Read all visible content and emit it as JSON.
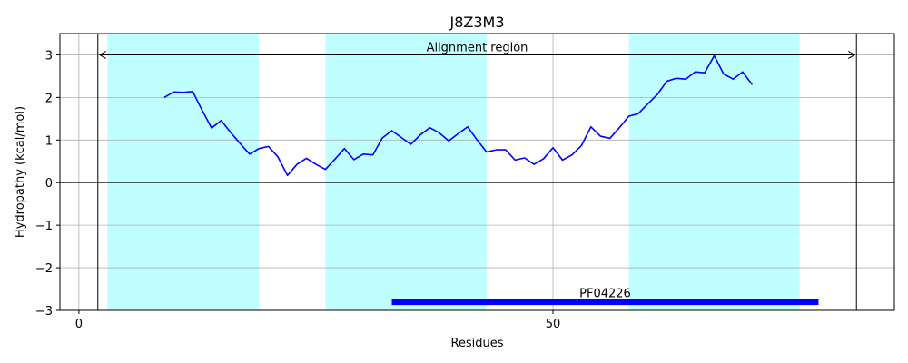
{
  "chart_data": {
    "type": "line",
    "title": "J8Z3M3",
    "xlabel": "Residues",
    "ylabel": "Hydropathy (kcal/mol)",
    "xlim": [
      -2,
      86
    ],
    "ylim": [
      -3,
      3.5
    ],
    "xticks": [
      0,
      50
    ],
    "xtick_labels": [
      "0",
      "50"
    ],
    "yticks": [
      -3,
      -2,
      -1,
      0,
      1,
      2,
      3
    ],
    "ytick_labels": [
      "−3",
      "−2",
      "−1",
      "0",
      "1",
      "2",
      "3"
    ],
    "grid": true,
    "series": [
      {
        "color": "#0000ff",
        "x": [
          9,
          10,
          11,
          12,
          13,
          14,
          15,
          16,
          17,
          18,
          19,
          20,
          21,
          22,
          23,
          24,
          25,
          26,
          27,
          28,
          29,
          30,
          31,
          32,
          33,
          34,
          35,
          36,
          37,
          38,
          39,
          40,
          41,
          42,
          43,
          44,
          45,
          46,
          47,
          48,
          49,
          50,
          51,
          52,
          53,
          54,
          55,
          56,
          57,
          58,
          59,
          60,
          61,
          62,
          63,
          64,
          65,
          66,
          67,
          68,
          69,
          70,
          71
        ],
        "y": [
          2.0,
          2.13,
          2.12,
          2.14,
          1.7,
          1.28,
          1.46,
          1.18,
          0.92,
          0.67,
          0.8,
          0.85,
          0.6,
          0.17,
          0.43,
          0.57,
          0.43,
          0.31,
          0.55,
          0.8,
          0.54,
          0.67,
          0.65,
          1.05,
          1.22,
          1.06,
          0.9,
          1.12,
          1.29,
          1.17,
          0.98,
          1.15,
          1.31,
          1.0,
          0.72,
          0.77,
          0.77,
          0.53,
          0.58,
          0.43,
          0.56,
          0.82,
          0.53,
          0.65,
          0.87,
          1.31,
          1.09,
          1.04,
          1.29,
          1.56,
          1.62,
          1.85,
          2.07,
          2.38,
          2.45,
          2.43,
          2.6,
          2.58,
          2.98,
          2.55,
          2.43,
          2.6,
          2.3
        ]
      }
    ],
    "shaded_regions": [
      {
        "x0": 3,
        "x1": 19,
        "color": "#c0ffff"
      },
      {
        "x0": 26,
        "x1": 43,
        "color": "#c0ffff"
      },
      {
        "x0": 58,
        "x1": 76,
        "color": "#c0ffff"
      }
    ],
    "alignment_region": {
      "label": "Alignment region",
      "x0": 2,
      "x1": 82,
      "y": 3.0
    },
    "domain_bar": {
      "label": "PF04226",
      "x0": 33,
      "x1": 78,
      "y": -2.8,
      "color": "#0000ff"
    }
  }
}
